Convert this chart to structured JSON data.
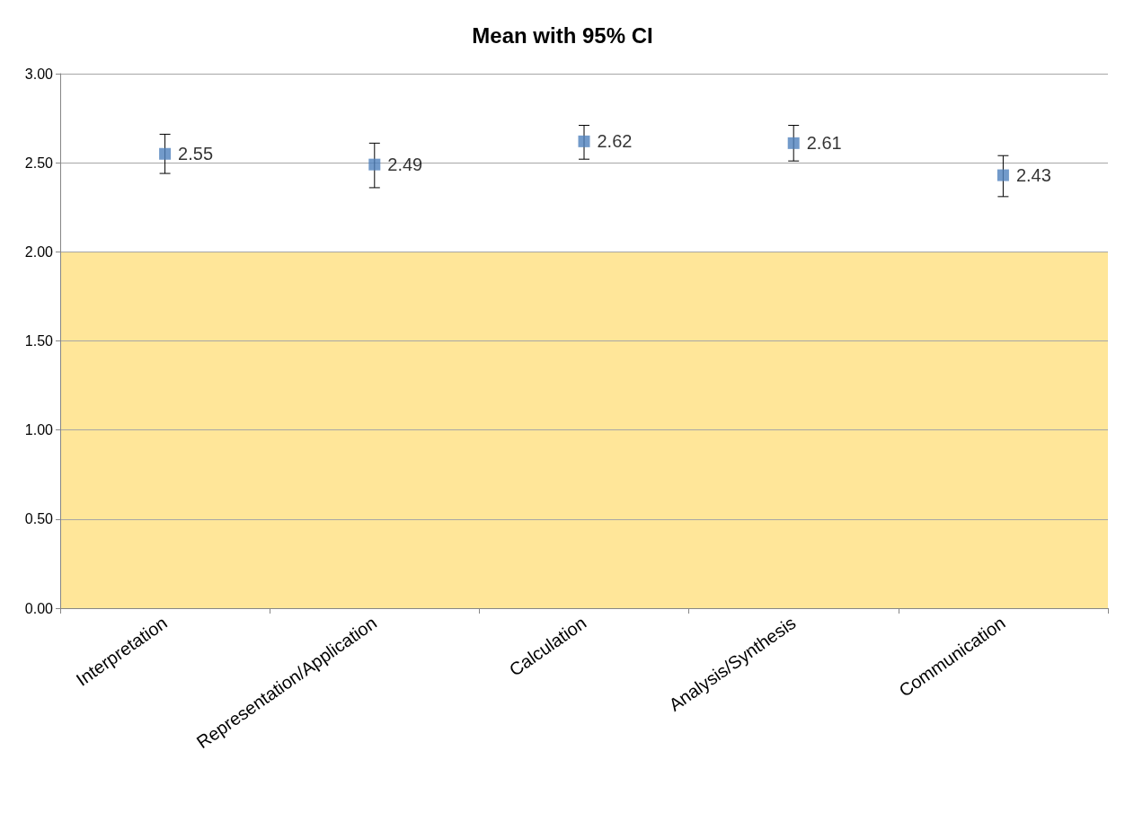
{
  "chart_data": {
    "type": "scatter",
    "title": "Mean with 95% CI",
    "categories": [
      "Interpretation",
      "Representation/Application",
      "Calculation",
      "Analysis/Synthesis",
      "Communication"
    ],
    "values": [
      2.55,
      2.49,
      2.62,
      2.61,
      2.43
    ],
    "errors": [
      [
        2.44,
        2.66
      ],
      [
        2.36,
        2.61
      ],
      [
        2.52,
        2.71
      ],
      [
        2.51,
        2.71
      ],
      [
        2.31,
        2.54
      ]
    ],
    "color": "#4f81bd",
    "marker": "square",
    "data_labels": true,
    "ylim": [
      0,
      3
    ],
    "yticks": [
      {
        "value": 0,
        "label": "0.00"
      },
      {
        "value": 0.5,
        "label": "0.50"
      },
      {
        "value": 1,
        "label": "1.00"
      },
      {
        "value": 1.5,
        "label": "1.50"
      },
      {
        "value": 2,
        "label": "2.00"
      },
      {
        "value": 2.5,
        "label": "2.50"
      },
      {
        "value": 3,
        "label": "3.00"
      }
    ],
    "bands": [
      {
        "axis": "y",
        "from": 0,
        "to": 2,
        "label": null,
        "color": "#ffe699"
      }
    ],
    "grid": "y"
  }
}
